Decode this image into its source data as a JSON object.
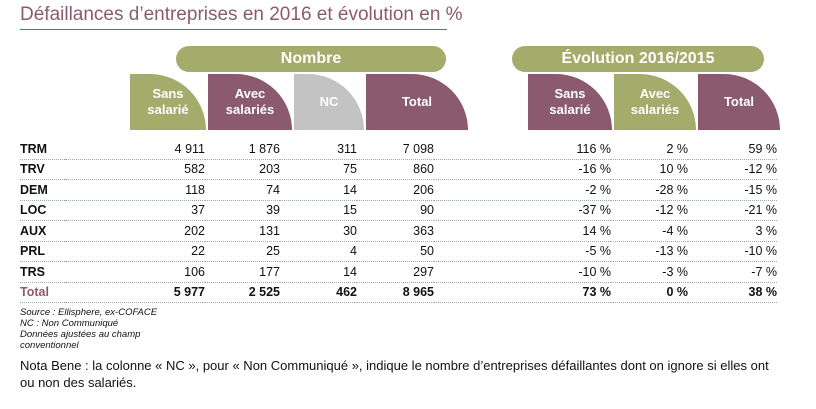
{
  "title": "Défaillances d’entreprises en 2016 et évolution en %",
  "groups": {
    "nombre": "Nombre",
    "evolution": "Évolution 2016/2015"
  },
  "headers": {
    "sans_salarie": [
      "Sans",
      "salarié"
    ],
    "avec_salaries": [
      "Avec",
      "salariés"
    ],
    "nc": "NC",
    "total": "Total",
    "evo_sans": [
      "Sans",
      "salarié"
    ],
    "evo_avec": [
      "Avec",
      "salariés"
    ],
    "evo_total": "Total"
  },
  "rows": [
    {
      "label": "TRM",
      "sans": "4 911",
      "avec": "1 876",
      "nc": "311",
      "total": "7 098",
      "evo_sans": "116 %",
      "evo_avec": "2 %",
      "evo_total": "59 %"
    },
    {
      "label": "TRV",
      "sans": "582",
      "avec": "203",
      "nc": "75",
      "total": "860",
      "evo_sans": "-16 %",
      "evo_avec": "10 %",
      "evo_total": "-12 %"
    },
    {
      "label": "DEM",
      "sans": "118",
      "avec": "74",
      "nc": "14",
      "total": "206",
      "evo_sans": "-2 %",
      "evo_avec": "-28 %",
      "evo_total": "-15 %"
    },
    {
      "label": "LOC",
      "sans": "37",
      "avec": "39",
      "nc": "15",
      "total": "90",
      "evo_sans": "-37 %",
      "evo_avec": "-12 %",
      "evo_total": "-21 %"
    },
    {
      "label": "AUX",
      "sans": "202",
      "avec": "131",
      "nc": "30",
      "total": "363",
      "evo_sans": "14 %",
      "evo_avec": "-4 %",
      "evo_total": "3 %"
    },
    {
      "label": "PRL",
      "sans": "22",
      "avec": "25",
      "nc": "4",
      "total": "50",
      "evo_sans": "-5 %",
      "evo_avec": "-13 %",
      "evo_total": "-10 %"
    },
    {
      "label": "TRS",
      "sans": "106",
      "avec": "177",
      "nc": "14",
      "total": "297",
      "evo_sans": "-10 %",
      "evo_avec": "-3 %",
      "evo_total": "-7 %"
    }
  ],
  "total_row": {
    "label": "Total",
    "sans": "5 977",
    "avec": "2 525",
    "nc": "462",
    "total": "8 965",
    "evo_sans": "73 %",
    "evo_avec": "0 %",
    "evo_total": "38 %"
  },
  "footnotes": {
    "source": "Source : Ellisphere, ex-COFACE",
    "nc": "NC : Non Communiqué",
    "adjust_1": "Données ajustées au champ",
    "adjust_2": "conventionnel"
  },
  "note": "Nota Bene : la colonne « NC », pour « Non Communiqué », indique le nombre d’entreprises défaillantes dont on ignore si elles ont ou non des salariés.",
  "colors": {
    "olive": "#a4ac6b",
    "plum": "#8b5a6e",
    "grey": "#c3c3c3"
  }
}
